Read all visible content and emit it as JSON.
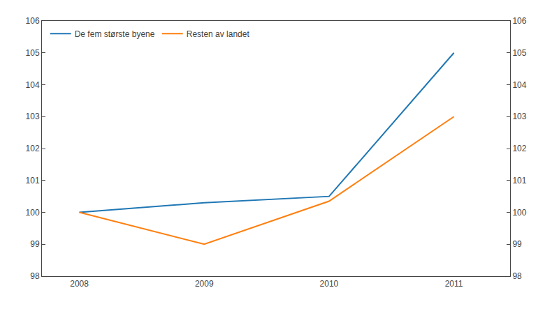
{
  "chart_data": {
    "type": "line",
    "series": [
      {
        "name": "De fem største byene",
        "x": [
          2008,
          2009,
          2010,
          2011
        ],
        "values": [
          100.0,
          100.3,
          100.5,
          105.0
        ]
      },
      {
        "name": "Resten av landet",
        "x": [
          2008,
          2009,
          2010,
          2011
        ],
        "values": [
          100.0,
          99.0,
          100.35,
          103.0
        ]
      }
    ],
    "xlim": [
      2007.7,
      2011.45
    ],
    "xticks": [
      2008,
      2009,
      2010,
      2011
    ],
    "ylim": [
      98,
      106
    ],
    "yticks": [
      98,
      99,
      100,
      101,
      102,
      103,
      104,
      105,
      106
    ],
    "y2lim": [
      98,
      106
    ],
    "y2ticks": [
      98,
      99,
      100,
      101,
      102,
      103,
      104,
      105,
      106
    ],
    "grid": false,
    "legend": "upper left"
  }
}
